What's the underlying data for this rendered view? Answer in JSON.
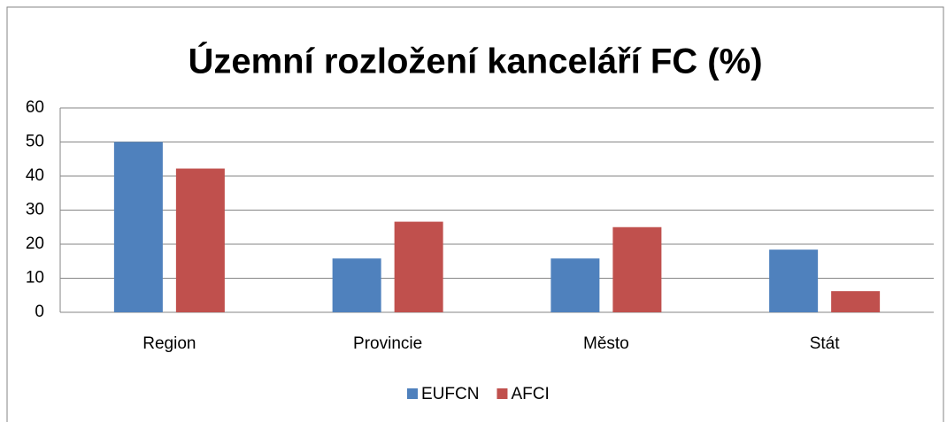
{
  "chart_data": {
    "type": "bar",
    "title": "Územní rozložení kanceláří FC (%)",
    "categories": [
      "Region",
      "Provincie",
      "Město",
      "Stát"
    ],
    "series": [
      {
        "name": "EUFCN",
        "color": "#4f81bd",
        "values": [
          50,
          15.8,
          15.8,
          18.4
        ]
      },
      {
        "name": "AFCI",
        "color": "#c0504d",
        "values": [
          42.2,
          26.6,
          25,
          6.2
        ]
      }
    ],
    "ylim": [
      0,
      60
    ],
    "yticks": [
      0,
      10,
      20,
      30,
      40,
      50,
      60
    ],
    "grid": true,
    "legend": "bottom"
  }
}
